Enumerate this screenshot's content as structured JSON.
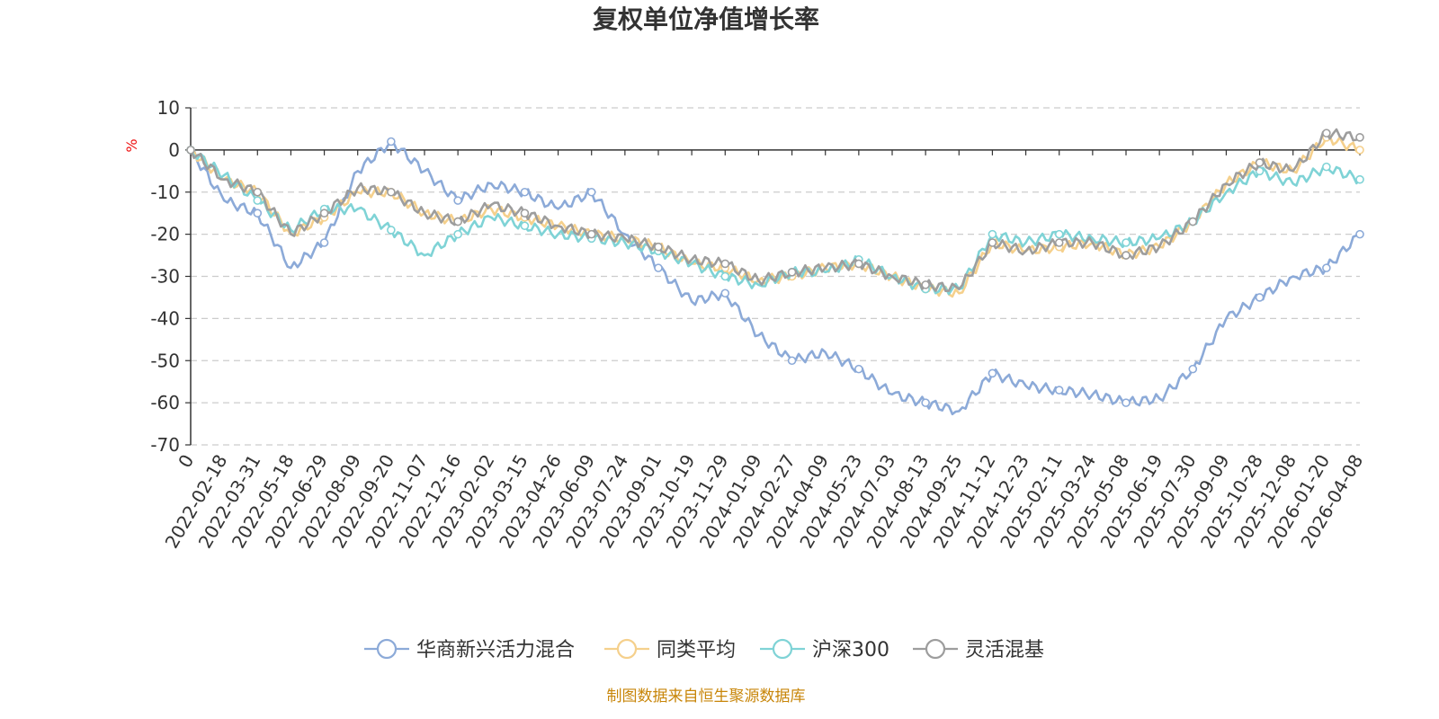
{
  "chart_data": {
    "type": "line",
    "title": "复权单位净值增长率",
    "y_unit": "%",
    "ylim": [
      -70,
      10
    ],
    "y_ticks": [
      10,
      0,
      -10,
      -20,
      -30,
      -40,
      -50,
      -60,
      -70
    ],
    "x_tick_labels": [
      "0",
      "2022-02-18",
      "2022-03-31",
      "2022-05-18",
      "2022-06-29",
      "2022-08-09",
      "2022-09-20",
      "2022-11-07",
      "2022-12-16",
      "2023-02-02",
      "2023-03-15",
      "2023-04-26",
      "2023-06-09",
      "2023-07-24",
      "2023-09-01",
      "2023-10-19",
      "2023-11-29",
      "2024-01-09",
      "2024-02-27",
      "2024-04-09",
      "2024-05-23",
      "2024-07-03",
      "2024-08-13",
      "2024-09-25",
      "2024-11-12",
      "2024-12-23",
      "2025-02-11",
      "2025-03-24",
      "2025-05-08",
      "2025-06-19",
      "2025-07-30",
      "2025-09-09",
      "2025-10-28",
      "2025-12-08",
      "2026-01-20",
      "2026-04-08"
    ],
    "grid": true,
    "legend_position": "bottom",
    "x_index": [
      0,
      1,
      2,
      3,
      4,
      5,
      6,
      7,
      8,
      9,
      10,
      11,
      12,
      13,
      14,
      15,
      16,
      17,
      18,
      19,
      20,
      21,
      22,
      23,
      24,
      25,
      26,
      27,
      28,
      29,
      30,
      31,
      32,
      33,
      34,
      35
    ],
    "series": [
      {
        "name": "华商新兴活力混合",
        "color": "#8caad8",
        "values": [
          0,
          -12,
          -15,
          -28,
          -22,
          -5,
          2,
          -5,
          -12,
          -8,
          -10,
          -14,
          -10,
          -20,
          -28,
          -36,
          -34,
          -44,
          -50,
          -48,
          -52,
          -58,
          -60,
          -62,
          -53,
          -56,
          -57,
          -58,
          -60,
          -59,
          -52,
          -40,
          -35,
          -30,
          -28,
          -20
        ]
      },
      {
        "name": "同类平均",
        "color": "#f5d08c",
        "values": [
          0,
          -7,
          -10,
          -20,
          -16,
          -10,
          -10,
          -15,
          -17,
          -14,
          -16,
          -18,
          -20,
          -21,
          -23,
          -27,
          -28,
          -31,
          -30,
          -28,
          -27,
          -30,
          -33,
          -34,
          -22,
          -24,
          -23,
          -22,
          -25,
          -23,
          -17,
          -8,
          -3,
          -5,
          3,
          0
        ]
      },
      {
        "name": "沪深300",
        "color": "#7fd3d6",
        "values": [
          0,
          -6,
          -12,
          -19,
          -14,
          -14,
          -19,
          -25,
          -20,
          -16,
          -18,
          -20,
          -21,
          -22,
          -24,
          -27,
          -30,
          -32,
          -29,
          -29,
          -26,
          -30,
          -33,
          -33,
          -20,
          -22,
          -20,
          -21,
          -22,
          -21,
          -17,
          -10,
          -5,
          -8,
          -4,
          -7
        ]
      },
      {
        "name": "灵活混基",
        "color": "#9d9d9d",
        "values": [
          0,
          -7,
          -10,
          -20,
          -15,
          -9,
          -10,
          -15,
          -17,
          -13,
          -15,
          -18,
          -20,
          -21,
          -23,
          -26,
          -27,
          -31,
          -29,
          -28,
          -27,
          -30,
          -32,
          -33,
          -22,
          -24,
          -22,
          -22,
          -25,
          -23,
          -17,
          -8,
          -3,
          -5,
          4,
          3
        ]
      }
    ]
  },
  "source_note": "制图数据来自恒生聚源数据库"
}
